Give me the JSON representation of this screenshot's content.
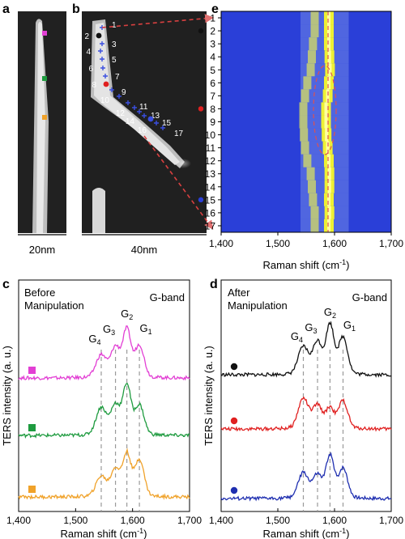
{
  "panel_letters": {
    "a": "a",
    "b": "b",
    "c": "c",
    "d": "d",
    "e": "e"
  },
  "panel_a": {
    "scale_label": "20nm",
    "marker_colors": [
      "#e23fd4",
      "#1e9b3f",
      "#f0a22a"
    ]
  },
  "panel_b": {
    "scale_label": "40nm",
    "points": [
      {
        "label": "1",
        "kind": "cross"
      },
      {
        "label": "2",
        "kind": "black-dot"
      },
      {
        "label": "3",
        "kind": "cross"
      },
      {
        "label": "4",
        "kind": "cross"
      },
      {
        "label": "5",
        "kind": "cross"
      },
      {
        "label": "6",
        "kind": "cross"
      },
      {
        "label": "7",
        "kind": "cross"
      },
      {
        "label": "8",
        "kind": "red-dot"
      },
      {
        "label": "9",
        "kind": "cross"
      },
      {
        "label": "10",
        "kind": "cross"
      },
      {
        "label": "11",
        "kind": "cross"
      },
      {
        "label": "12",
        "kind": "cross"
      },
      {
        "label": "13",
        "kind": "cross"
      },
      {
        "label": "14",
        "kind": "cross"
      },
      {
        "label": "15",
        "kind": "blue-dot"
      },
      {
        "label": "16",
        "kind": "cross"
      },
      {
        "label": "17",
        "kind": "cross"
      }
    ]
  },
  "panel_e": {
    "xlabel": "Raman shift (cm",
    "xlabel_sup": "-1",
    "xlabel_close": ")",
    "xticks": [
      "1,400",
      "1,500",
      "1,600",
      "1,700"
    ],
    "rows": [
      "1",
      "2",
      "3",
      "4",
      "5",
      "6",
      "7",
      "8",
      "9",
      "10",
      "11",
      "12",
      "13",
      "14",
      "15",
      "16",
      "17"
    ],
    "dot_rows": [
      {
        "row": "2",
        "color": "#111111"
      },
      {
        "row": "8",
        "color": "#e02020"
      },
      {
        "row": "15",
        "color": "#2a3fd8"
      }
    ],
    "colors": {
      "background": "#2a3fd8",
      "peak": "#ffff20",
      "guide": "#e05050"
    }
  },
  "panel_c": {
    "title_line1": "Before",
    "title_line2": "Manipulation",
    "band": "G-band",
    "ylabel": "TERS intensity (a. u.)",
    "xlabel": "Raman shift (cm",
    "xlabel_sup": "-1",
    "xlabel_close": ")",
    "xticks": [
      "1,400",
      "1,500",
      "1,600",
      "1,700"
    ],
    "peaks": [
      {
        "base": "G",
        "sub": "4"
      },
      {
        "base": "G",
        "sub": "3"
      },
      {
        "base": "G",
        "sub": "2"
      },
      {
        "base": "G",
        "sub": "1"
      }
    ],
    "series_colors": [
      "#e23fd4",
      "#1e9b3f",
      "#f0a22a"
    ]
  },
  "panel_d": {
    "title_line1": "After",
    "title_line2": "Manipulation",
    "band": "G-band",
    "ylabel": "TERS intensity (a. u.)",
    "xlabel": "Raman shift (cm",
    "xlabel_sup": "-1",
    "xlabel_close": ")",
    "xticks": [
      "1,400",
      "1,500",
      "1,600",
      "1,700"
    ],
    "peaks": [
      {
        "base": "G",
        "sub": "4"
      },
      {
        "base": "G",
        "sub": "3"
      },
      {
        "base": "G",
        "sub": "2"
      },
      {
        "base": "G",
        "sub": "1"
      }
    ],
    "series_colors": [
      "#111111",
      "#e02020",
      "#1f2fb0"
    ]
  },
  "chart_data": [
    {
      "type": "heatmap",
      "panel": "e",
      "xlabel": "Raman shift (cm-1)",
      "xlim": [
        1400,
        1700
      ],
      "rows": [
        "1",
        "2",
        "3",
        "4",
        "5",
        "6",
        "7",
        "8",
        "9",
        "10",
        "11",
        "12",
        "13",
        "14",
        "15",
        "16",
        "17"
      ],
      "peak_center_by_row": [
        1590,
        1590,
        1590,
        1591,
        1592,
        1590,
        1588,
        1585,
        1585,
        1586,
        1588,
        1590,
        1591,
        1591,
        1590,
        1591,
        1590
      ],
      "secondary_peak_by_row": [
        1565,
        1565,
        1562,
        1560,
        1558,
        1552,
        1548,
        1545,
        1545,
        1546,
        1548,
        1552,
        1558,
        1560,
        1562,
        1565,
        1565
      ]
    },
    {
      "type": "line",
      "panel": "c",
      "xlabel": "Raman shift (cm-1)",
      "ylabel": "TERS intensity (a. u.)",
      "xlim": [
        1400,
        1700
      ],
      "peak_positions": {
        "G4": 1545,
        "G3": 1570,
        "G2": 1590,
        "G1": 1612
      },
      "series": [
        {
          "color": "#e23fd4",
          "peak_heights": [
            0.45,
            0.6,
            0.95,
            0.65
          ]
        },
        {
          "color": "#1e9b3f",
          "peak_heights": [
            0.55,
            0.6,
            1.0,
            0.6
          ]
        },
        {
          "color": "#f0a22a",
          "peak_heights": [
            0.4,
            0.55,
            0.85,
            0.75
          ]
        }
      ]
    },
    {
      "type": "line",
      "panel": "d",
      "xlabel": "Raman shift (cm-1)",
      "ylabel": "TERS intensity (a. u.)",
      "xlim": [
        1400,
        1700
      ],
      "peak_positions": {
        "G4": 1545,
        "G3": 1570,
        "G2": 1592,
        "G1": 1615
      },
      "series": [
        {
          "color": "#111111",
          "peak_heights": [
            0.55,
            0.65,
            1.0,
            0.75
          ]
        },
        {
          "color": "#e02020",
          "peak_heights": [
            0.6,
            0.45,
            0.4,
            0.55
          ]
        },
        {
          "color": "#1f2fb0",
          "peak_heights": [
            0.5,
            0.45,
            0.85,
            0.6
          ]
        }
      ]
    }
  ]
}
